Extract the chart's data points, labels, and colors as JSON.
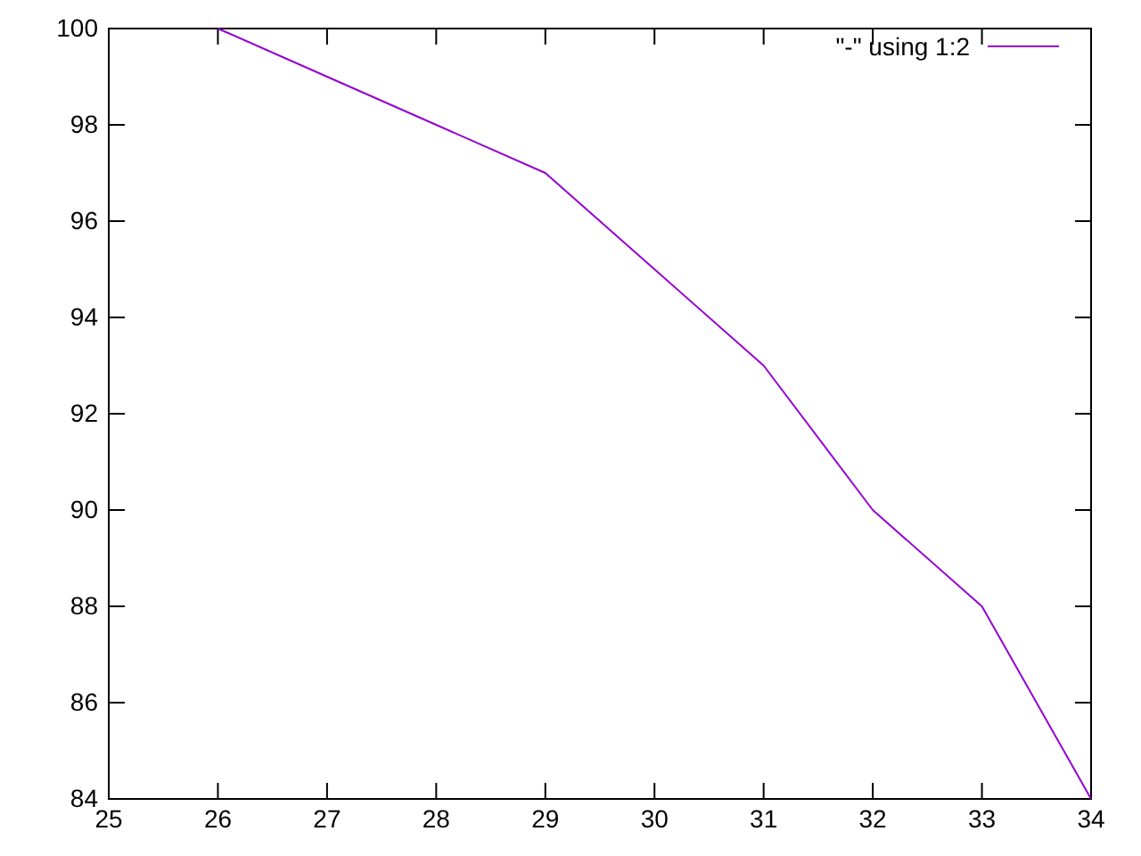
{
  "chart_data": {
    "type": "line",
    "x": [
      26,
      27,
      28,
      29,
      30,
      31,
      32,
      33,
      34
    ],
    "series": [
      {
        "name": "\"-\" using 1:2",
        "color": "#9400d3",
        "values": [
          100,
          99,
          98,
          97,
          95,
          93,
          90,
          88,
          84
        ]
      }
    ],
    "xlim": [
      25,
      34
    ],
    "xticks": [
      25,
      26,
      27,
      28,
      29,
      30,
      31,
      32,
      33,
      34
    ],
    "ylim": [
      84,
      100
    ],
    "yticks": [
      84,
      86,
      88,
      90,
      92,
      94,
      96,
      98,
      100
    ],
    "legend": "top right",
    "grid": false,
    "marker": "none",
    "line_style": "solid"
  }
}
